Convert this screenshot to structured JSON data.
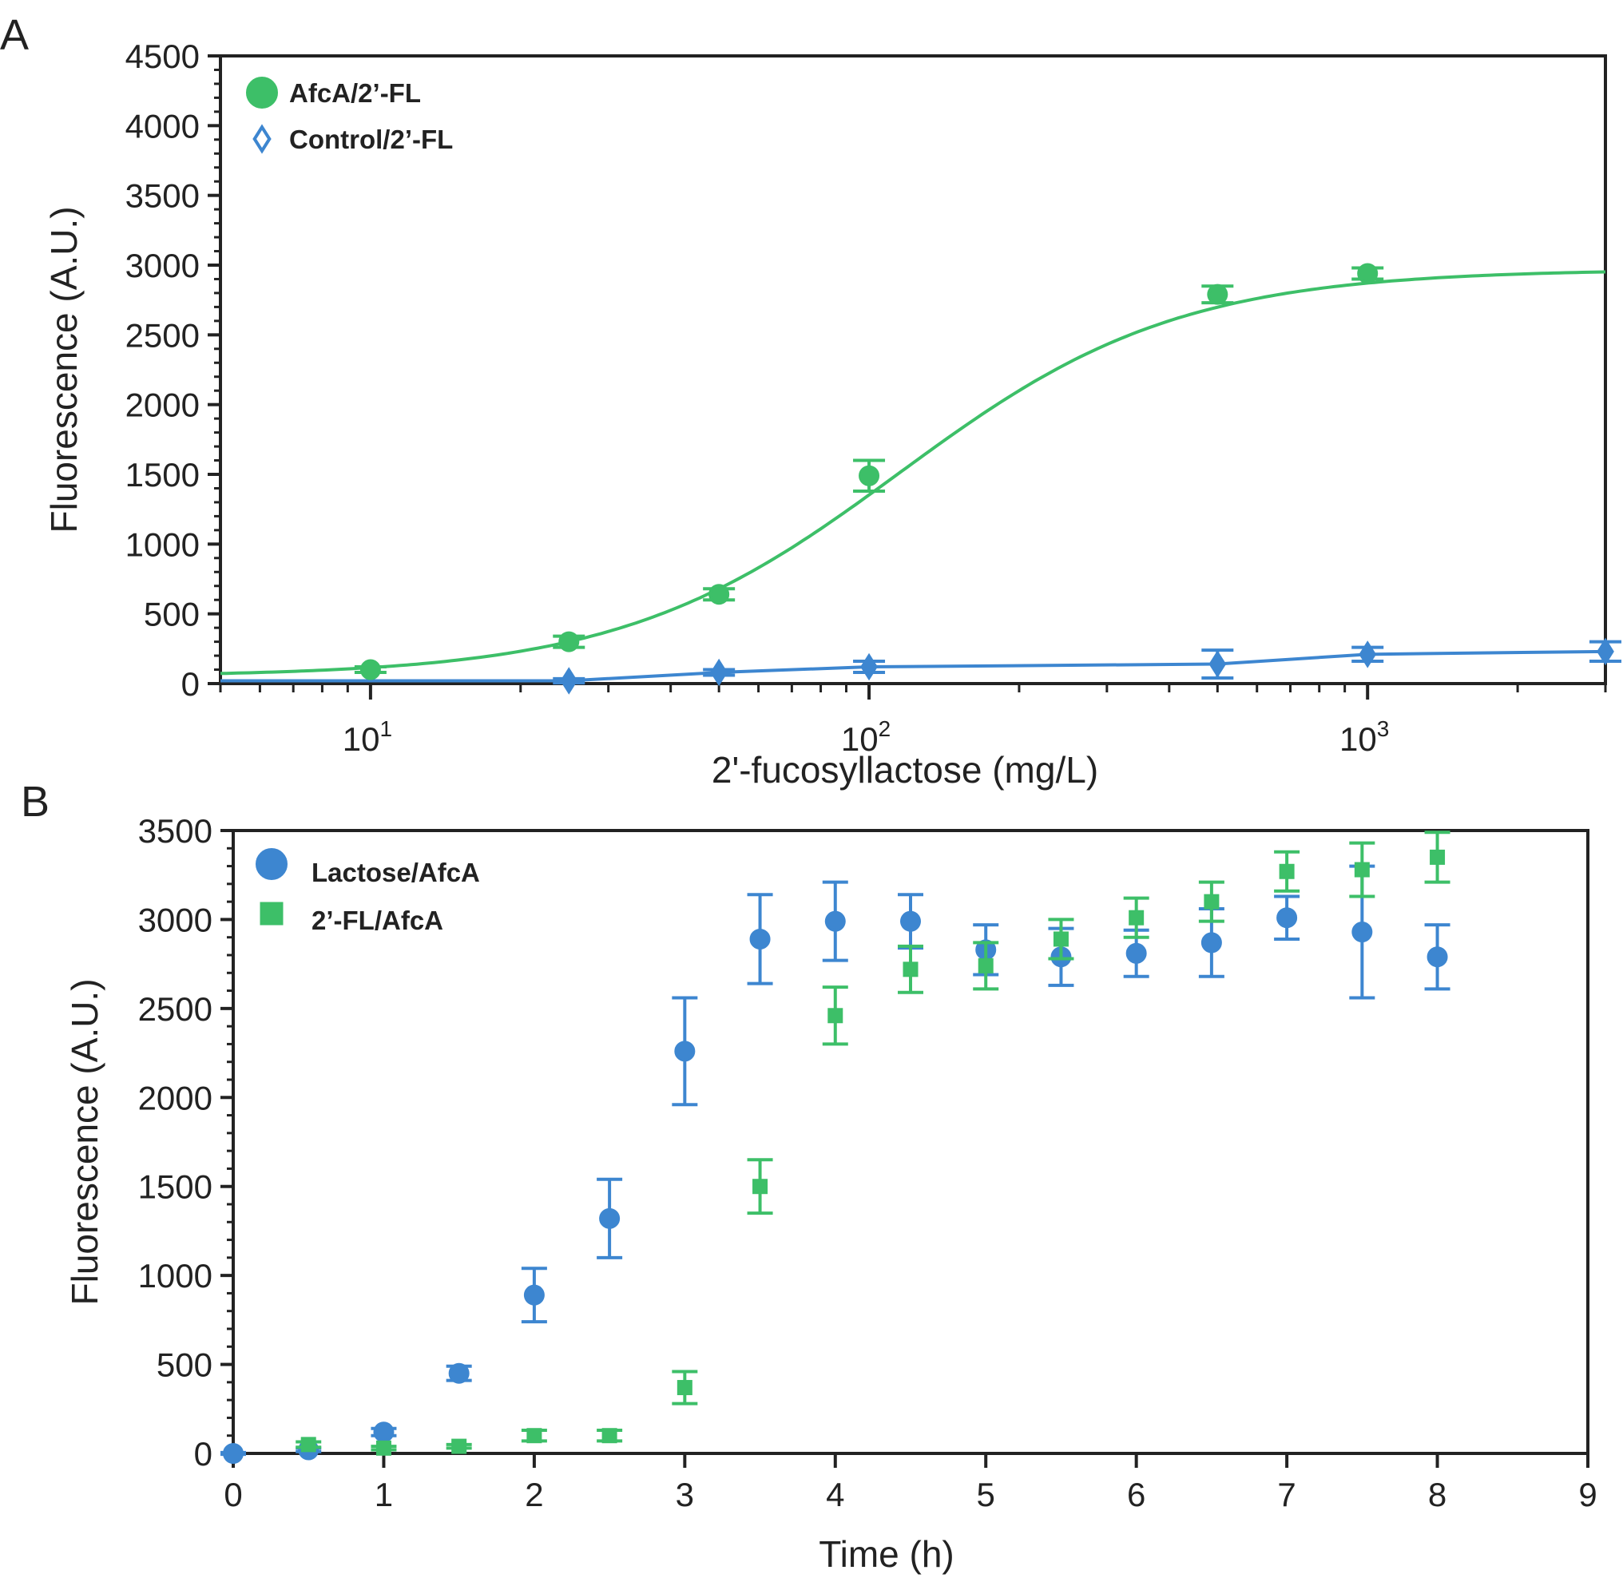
{
  "chart_data": [
    {
      "panel": "A",
      "type": "scatter",
      "xscale": "log",
      "xlabel": "2'-fucosyllactose (mg/L)",
      "ylabel": "Fluorescence (A.U.)",
      "xlim": [
        5,
        3000
      ],
      "ylim": [
        0,
        4500
      ],
      "yticks": [
        "0",
        "500",
        "1000",
        "1500",
        "2000",
        "2500",
        "3000",
        "3500",
        "4000",
        "4500"
      ],
      "xtick_base": [
        "10",
        "10",
        "10"
      ],
      "xtick_exp": [
        "1",
        "2",
        "3"
      ],
      "legend_position": "top-left",
      "series": [
        {
          "name": "AfcA/2’-FL",
          "color": "#3dbf68",
          "marker": "circle",
          "x": [
            10,
            25,
            50,
            100,
            500,
            1000
          ],
          "y": [
            100,
            300,
            640,
            1490,
            2790,
            2940
          ],
          "err": [
            20,
            40,
            40,
            110,
            60,
            40
          ],
          "fit": {
            "bottom": 50,
            "top": 2970,
            "ec50": 115,
            "hill": 1.55
          }
        },
        {
          "name": "Control/2’-FL",
          "color": "#3d86d0",
          "marker": "diamond",
          "x": [
            25,
            50,
            100,
            500,
            1000,
            3000
          ],
          "y": [
            20,
            80,
            120,
            140,
            210,
            230
          ],
          "err": [
            15,
            20,
            40,
            100,
            50,
            70
          ],
          "line": true
        }
      ]
    },
    {
      "panel": "B",
      "type": "scatter",
      "xlabel": "Time (h)",
      "ylabel": "Fluorescence (A.U.)",
      "xlim": [
        0,
        9
      ],
      "ylim": [
        0,
        3500
      ],
      "xticks": [
        "0",
        "1",
        "2",
        "3",
        "4",
        "5",
        "6",
        "7",
        "8",
        "9"
      ],
      "yticks": [
        "0",
        "500",
        "1000",
        "1500",
        "2000",
        "2500",
        "3000",
        "3500"
      ],
      "legend_position": "top-left",
      "series": [
        {
          "name": "Lactose/AfcA",
          "color": "#3d86d0",
          "marker": "circle",
          "x": [
            0,
            0.5,
            1,
            1.5,
            2,
            2.5,
            3,
            3.5,
            4,
            4.5,
            5,
            5.5,
            6,
            6.5,
            7,
            7.5,
            8
          ],
          "y": [
            0,
            20,
            120,
            450,
            890,
            1320,
            2260,
            2890,
            2990,
            2990,
            2830,
            2790,
            2810,
            2870,
            3010,
            2930,
            2790
          ],
          "err": [
            5,
            10,
            20,
            40,
            150,
            220,
            300,
            250,
            220,
            150,
            140,
            160,
            130,
            190,
            120,
            370,
            180
          ]
        },
        {
          "name": "2’-FL/AfcA",
          "color": "#3dbf68",
          "marker": "square",
          "x": [
            0.5,
            1,
            1.5,
            2,
            2.5,
            3,
            3.5,
            4,
            4.5,
            5,
            5.5,
            6,
            6.5,
            7,
            7.5,
            8
          ],
          "y": [
            50,
            30,
            40,
            100,
            100,
            370,
            1500,
            2460,
            2720,
            2740,
            2890,
            3010,
            3100,
            3270,
            3280,
            3350
          ],
          "err": [
            15,
            10,
            10,
            30,
            30,
            90,
            150,
            160,
            130,
            130,
            110,
            110,
            110,
            110,
            150,
            140
          ]
        }
      ]
    }
  ],
  "panel_labels": [
    "A",
    "B"
  ]
}
